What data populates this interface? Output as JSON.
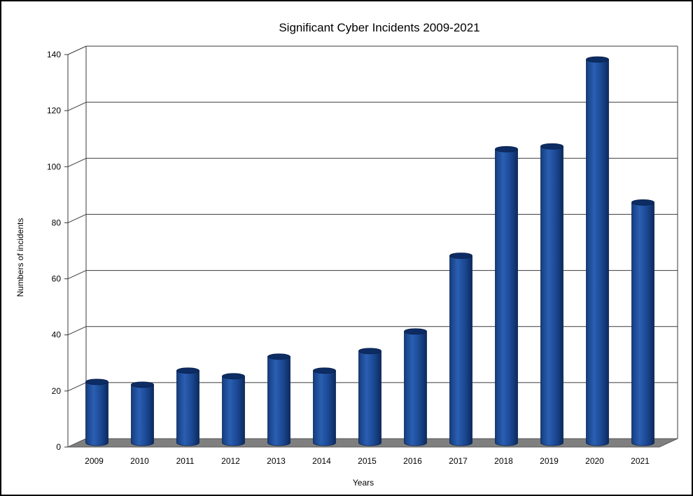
{
  "chart_data": {
    "type": "bar",
    "title": "Significant Cyber Incidents 2009-2021",
    "xlabel": "Years",
    "ylabel": "Numbers of incidents",
    "categories": [
      "2009",
      "2010",
      "2011",
      "2012",
      "2013",
      "2014",
      "2015",
      "2016",
      "2017",
      "2018",
      "2019",
      "2020",
      "2021"
    ],
    "values": [
      21,
      20,
      25,
      23,
      30,
      25,
      32,
      39,
      66,
      104,
      105,
      136,
      85
    ],
    "ylim": [
      0,
      140
    ],
    "yticks": [
      "0",
      "20",
      "40",
      "60",
      "80",
      "100",
      "120",
      "140"
    ],
    "grid": true,
    "bar_color": "#1f4e9a",
    "floor_color": "#7f7f7f"
  }
}
